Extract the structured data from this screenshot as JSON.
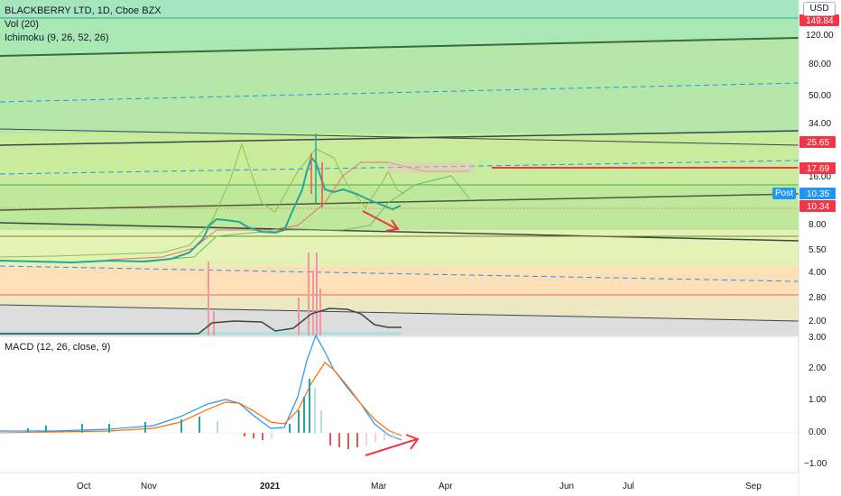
{
  "header": {
    "title": "BLACKBERRY LTD, 1D, Cboe BZX",
    "volume_indicator": "Vol (20)",
    "ichimoku_indicator": "Ichimoku (9, 26, 52, 26)",
    "currency": "USD"
  },
  "price_axis": {
    "ticks": [
      "120.00",
      "80.00",
      "50.00",
      "34.00",
      "16.00",
      "8.00",
      "5.50",
      "4.00",
      "2.80",
      "2.00"
    ]
  },
  "price_tags": [
    {
      "label": "149.84",
      "color": "#f23645"
    },
    {
      "label": "25.65",
      "color": "#f23645"
    },
    {
      "label": "17.69",
      "color": "#f23645"
    },
    {
      "label": "10.35",
      "color": "#2196f3"
    },
    {
      "label": "10.34",
      "color": "#f23645"
    }
  ],
  "post_market": {
    "label": "Post"
  },
  "macd": {
    "title": "MACD (12, 26, close, 9)",
    "ticks": [
      "3.00",
      "2.00",
      "1.00",
      "0.00",
      "−1.00"
    ]
  },
  "time_axis": {
    "labels": [
      "Oct",
      "Nov",
      "2021",
      "Mar",
      "Apr",
      "Jun",
      "Jul",
      "Sep"
    ]
  },
  "colors": {
    "accent_blue": "#2196f3",
    "red": "#f23645",
    "green_candle": "#26a69a",
    "orange": "#ff6d00"
  },
  "icons": {
    "annotation_arrow": "red-arrow-icon"
  }
}
